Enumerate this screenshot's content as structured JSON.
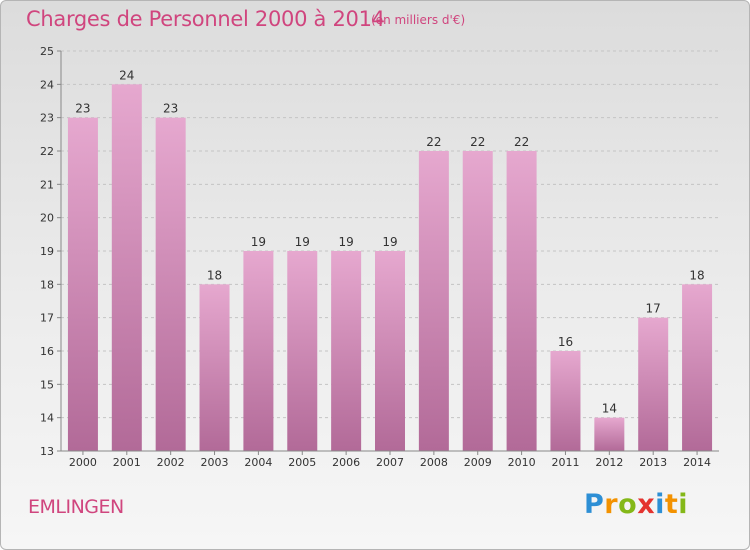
{
  "title": "Charges de Personnel 2000 à 2014",
  "unit_note": "(en milliers d'€)",
  "commune": "EMLINGEN",
  "logo": {
    "text": "Proxiti",
    "letters": [
      {
        "ch": "P",
        "color": "#2d8fd5"
      },
      {
        "ch": "r",
        "color": "#f39200"
      },
      {
        "ch": "o",
        "color": "#84b818"
      },
      {
        "ch": "x",
        "color": "#e4332f"
      },
      {
        "ch": "i",
        "color": "#2d8fd5"
      },
      {
        "ch": "t",
        "color": "#f39200"
      },
      {
        "ch": "i",
        "color": "#84b818"
      }
    ]
  },
  "colors": {
    "accent": "#d0457e",
    "bar_top": "#e6a8cf",
    "bar_bottom": "#b26a98"
  },
  "chart_data": {
    "type": "bar",
    "title": "Charges de Personnel 2000 à 2014",
    "subtitle": "(en milliers d'€)",
    "categories": [
      "2000",
      "2001",
      "2002",
      "2003",
      "2004",
      "2005",
      "2006",
      "2007",
      "2008",
      "2009",
      "2010",
      "2011",
      "2012",
      "2013",
      "2014"
    ],
    "values": [
      23,
      24,
      23,
      18,
      19,
      19,
      19,
      19,
      22,
      22,
      22,
      16,
      14,
      17,
      18
    ],
    "ylim": [
      13,
      25
    ],
    "yticks": [
      13,
      14,
      15,
      16,
      17,
      18,
      19,
      20,
      21,
      22,
      23,
      24,
      25
    ],
    "grid": true,
    "data_labels": true
  }
}
